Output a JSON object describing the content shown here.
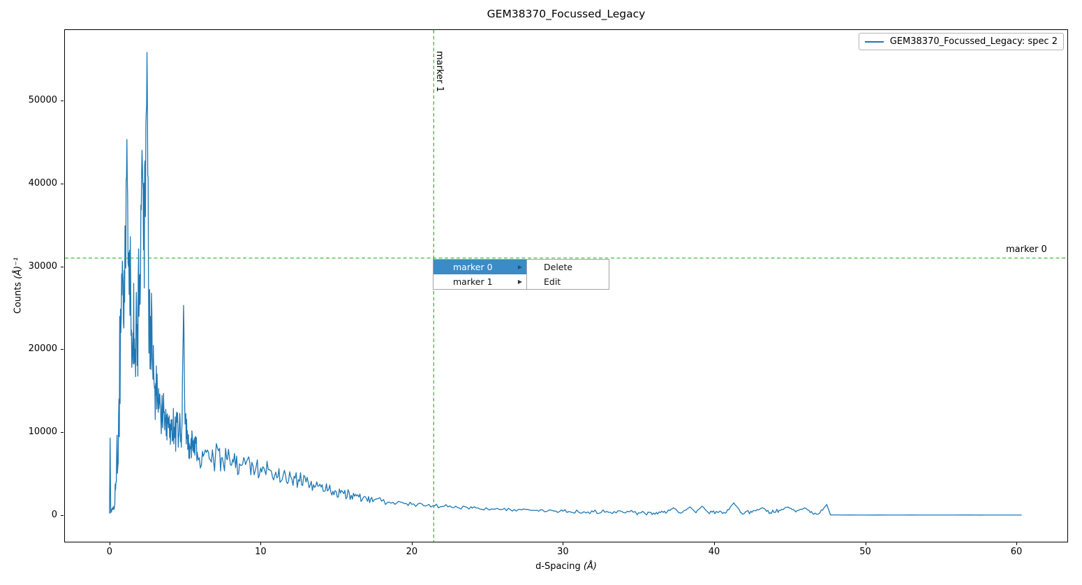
{
  "window": {
    "figure_title": "GEM38370_Focussed_Legacy"
  },
  "chart_data": {
    "type": "line",
    "title": "GEM38370_Focussed_Legacy",
    "xlabel": "d-Spacing (Å)",
    "xlabel_parts": [
      "d-Spacing ",
      "(Å)"
    ],
    "ylabel": "Counts (Å)⁻¹",
    "ylabel_parts": [
      "Counts ",
      "(Å)⁻¹"
    ],
    "xlim": [
      -2.95,
      63.37
    ],
    "ylim": [
      -3190,
      58490
    ],
    "xticks": [
      0,
      10,
      20,
      30,
      40,
      50,
      60
    ],
    "yticks": [
      0,
      10000,
      20000,
      30000,
      40000,
      50000
    ],
    "grid": false,
    "legend": {
      "position": "upper right"
    },
    "series": [
      {
        "name": "GEM38370_Focussed_Legacy: spec 2",
        "color": "#1f77b4",
        "comment": "profile = [d-spacing, counts, noise-amplitude] envelope anchors of the noisy spectrum",
        "profile": [
          [
            0.0,
            200,
            0
          ],
          [
            0.04,
            9300,
            0
          ],
          [
            0.08,
            300,
            200
          ],
          [
            0.25,
            800,
            600
          ],
          [
            0.45,
            4000,
            3000
          ],
          [
            0.6,
            12000,
            7000
          ],
          [
            0.75,
            22000,
            9000
          ],
          [
            0.9,
            28000,
            9500
          ],
          [
            1.05,
            33000,
            9000
          ],
          [
            1.15,
            45300,
            0
          ],
          [
            1.25,
            30000,
            8500
          ],
          [
            1.4,
            28000,
            8000
          ],
          [
            1.55,
            22000,
            7000
          ],
          [
            1.7,
            20000,
            6500
          ],
          [
            1.85,
            23000,
            7500
          ],
          [
            2.0,
            29000,
            8500
          ],
          [
            2.15,
            44000,
            0
          ],
          [
            2.25,
            32000,
            8000
          ],
          [
            2.38,
            36000,
            9000
          ],
          [
            2.48,
            55800,
            0
          ],
          [
            2.58,
            28000,
            8000
          ],
          [
            2.7,
            24000,
            7000
          ],
          [
            2.85,
            18000,
            5500
          ],
          [
            3.0,
            15500,
            4500
          ],
          [
            3.2,
            13500,
            3800
          ],
          [
            3.45,
            12500,
            3200
          ],
          [
            3.7,
            11800,
            3000
          ],
          [
            4.0,
            11000,
            2800
          ],
          [
            4.3,
            10200,
            2500
          ],
          [
            4.6,
            9800,
            2400
          ],
          [
            4.8,
            11000,
            2800
          ],
          [
            4.9,
            25300,
            0
          ],
          [
            5.0,
            11000,
            2600
          ],
          [
            5.2,
            9000,
            2200
          ],
          [
            5.5,
            8200,
            1900
          ],
          [
            5.8,
            7600,
            1800
          ],
          [
            6.2,
            7100,
            1700
          ],
          [
            6.6,
            6800,
            1600
          ],
          [
            7.0,
            7000,
            1700
          ],
          [
            7.4,
            6900,
            1600
          ],
          [
            7.8,
            6700,
            1600
          ],
          [
            8.2,
            6400,
            1500
          ],
          [
            8.6,
            6200,
            1400
          ],
          [
            9.0,
            6100,
            1400
          ],
          [
            9.5,
            5900,
            1300
          ],
          [
            10.0,
            5700,
            1300
          ],
          [
            10.5,
            5500,
            1200
          ],
          [
            11.0,
            5200,
            1150
          ],
          [
            11.5,
            4900,
            1100
          ],
          [
            12.0,
            4600,
            1050
          ],
          [
            12.5,
            4300,
            1000
          ],
          [
            13.0,
            4000,
            950
          ],
          [
            13.5,
            3700,
            880
          ],
          [
            14.0,
            3400,
            820
          ],
          [
            14.5,
            3100,
            760
          ],
          [
            15.0,
            2850,
            700
          ],
          [
            15.5,
            2600,
            640
          ],
          [
            16.0,
            2400,
            580
          ],
          [
            16.5,
            2200,
            530
          ],
          [
            17.0,
            2000,
            480
          ],
          [
            17.5,
            1850,
            430
          ],
          [
            18.0,
            1700,
            390
          ],
          [
            18.5,
            1580,
            360
          ],
          [
            19.0,
            1480,
            330
          ],
          [
            19.5,
            1400,
            310
          ],
          [
            20.0,
            1320,
            300
          ],
          [
            21.0,
            1180,
            270
          ],
          [
            21.5,
            1120,
            260
          ],
          [
            22.0,
            1060,
            250
          ],
          [
            23.0,
            950,
            230
          ],
          [
            24.0,
            860,
            210
          ],
          [
            25.0,
            780,
            200
          ],
          [
            26.0,
            710,
            190
          ],
          [
            27.0,
            650,
            180
          ],
          [
            28.0,
            590,
            170
          ],
          [
            29.0,
            540,
            160
          ],
          [
            30.0,
            490,
            200
          ],
          [
            31.0,
            440,
            200
          ],
          [
            32.0,
            400,
            220
          ],
          [
            33.0,
            360,
            300
          ],
          [
            34.0,
            320,
            320
          ],
          [
            35.0,
            290,
            300
          ],
          [
            36.0,
            270,
            280
          ],
          [
            36.8,
            250,
            260
          ],
          [
            37.3,
            900,
            0
          ],
          [
            37.8,
            250,
            240
          ],
          [
            38.4,
            1000,
            0
          ],
          [
            38.8,
            300,
            220
          ],
          [
            39.2,
            1100,
            0
          ],
          [
            39.6,
            350,
            220
          ],
          [
            40.2,
            400,
            250
          ],
          [
            40.8,
            300,
            220
          ],
          [
            41.3,
            1500,
            0
          ],
          [
            41.8,
            300,
            220
          ],
          [
            42.5,
            350,
            240
          ],
          [
            43.2,
            900,
            0
          ],
          [
            43.7,
            300,
            220
          ],
          [
            44.3,
            600,
            280
          ],
          [
            44.9,
            1000,
            0
          ],
          [
            45.4,
            400,
            240
          ],
          [
            46.0,
            900,
            0
          ],
          [
            46.5,
            250,
            200
          ],
          [
            47.0,
            300,
            210
          ],
          [
            47.45,
            1300,
            0
          ],
          [
            47.7,
            40,
            8
          ],
          [
            48.5,
            30,
            8
          ],
          [
            50.0,
            30,
            8
          ],
          [
            52.0,
            30,
            8
          ],
          [
            55.0,
            30,
            8
          ],
          [
            58.0,
            30,
            8
          ],
          [
            60.35,
            30,
            0
          ]
        ]
      }
    ],
    "markers": [
      {
        "name": "marker 0",
        "orientation": "horizontal",
        "value": 31000,
        "color": "#2cb42c",
        "style": "dashed"
      },
      {
        "name": "marker 1",
        "orientation": "vertical",
        "value": 21.45,
        "color": "#2cb42c",
        "style": "dashed"
      }
    ]
  },
  "context_menu": {
    "highlight_color": "#3b8bc7",
    "items": [
      {
        "label": "marker 0",
        "highlighted": true,
        "has_submenu": true
      },
      {
        "label": "marker 1",
        "highlighted": false,
        "has_submenu": true
      }
    ],
    "submenu": {
      "items": [
        {
          "label": "Delete"
        },
        {
          "label": "Edit"
        }
      ]
    }
  },
  "colors": {
    "spectrum_line": "#1f77b4",
    "marker_line": "#2cb42c",
    "menu_highlight": "#3b8bc7",
    "spine": "#000000",
    "background": "#ffffff"
  }
}
